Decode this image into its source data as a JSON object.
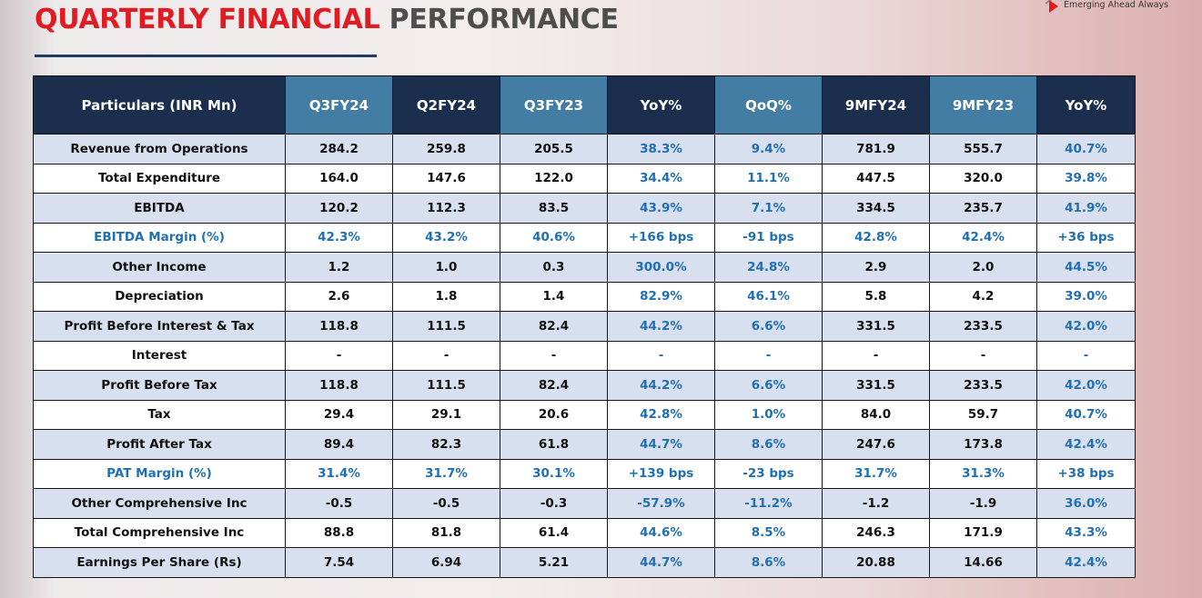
{
  "header": {
    "title_red": "QUARTERLY FINANCIAL",
    "title_gray": "PERFORMANCE",
    "tagline": "Emerging Ahead Always"
  },
  "colors": {
    "title_red": "#e11b22",
    "header_navy": "#1c2e4e",
    "header_highlight": "#447da4",
    "row_shade": "#d8e0f0",
    "value_blue": "#1f6fb2"
  },
  "table": {
    "columns": [
      "Particulars (INR Mn)",
      "Q3FY24",
      "Q2FY24",
      "Q3FY23",
      "YoY%",
      "QoQ%",
      "9MFY24",
      "9MFY23",
      "YoY%"
    ],
    "rows": [
      {
        "label": "Revenue from Operations",
        "cells": [
          "284.2",
          "259.8",
          "205.5",
          "38.3%",
          "9.4%",
          "781.9",
          "555.7",
          "40.7%"
        ]
      },
      {
        "label": "Total Expenditure",
        "cells": [
          "164.0",
          "147.6",
          "122.0",
          "34.4%",
          "11.1%",
          "447.5",
          "320.0",
          "39.8%"
        ]
      },
      {
        "label": "EBITDA",
        "cells": [
          "120.2",
          "112.3",
          "83.5",
          "43.9%",
          "7.1%",
          "334.5",
          "235.7",
          "41.9%"
        ]
      },
      {
        "label": "EBITDA Margin (%)",
        "cells": [
          "42.3%",
          "43.2%",
          "40.6%",
          "+166 bps",
          "-91 bps",
          "42.8%",
          "42.4%",
          "+36 bps"
        ]
      },
      {
        "label": "Other Income",
        "cells": [
          "1.2",
          "1.0",
          "0.3",
          "300.0%",
          "24.8%",
          "2.9",
          "2.0",
          "44.5%"
        ]
      },
      {
        "label": "Depreciation",
        "cells": [
          "2.6",
          "1.8",
          "1.4",
          "82.9%",
          "46.1%",
          "5.8",
          "4.2",
          "39.0%"
        ]
      },
      {
        "label": "Profit Before Interest & Tax",
        "cells": [
          "118.8",
          "111.5",
          "82.4",
          "44.2%",
          "6.6%",
          "331.5",
          "233.5",
          "42.0%"
        ]
      },
      {
        "label": "Interest",
        "cells": [
          "-",
          "-",
          "-",
          "-",
          "-",
          "-",
          "-",
          "-"
        ]
      },
      {
        "label": "Profit Before Tax",
        "cells": [
          "118.8",
          "111.5",
          "82.4",
          "44.2%",
          "6.6%",
          "331.5",
          "233.5",
          "42.0%"
        ]
      },
      {
        "label": "Tax",
        "cells": [
          "29.4",
          "29.1",
          "20.6",
          "42.8%",
          "1.0%",
          "84.0",
          "59.7",
          "40.7%"
        ]
      },
      {
        "label": "Profit After Tax",
        "cells": [
          "89.4",
          "82.3",
          "61.8",
          "44.7%",
          "8.6%",
          "247.6",
          "173.8",
          "42.4%"
        ]
      },
      {
        "label": "PAT Margin (%)",
        "cells": [
          "31.4%",
          "31.7%",
          "30.1%",
          "+139 bps",
          "-23 bps",
          "31.7%",
          "31.3%",
          "+38 bps"
        ]
      },
      {
        "label": "Other Comprehensive Inc",
        "cells": [
          "-0.5",
          "-0.5",
          "-0.3",
          "-57.9%",
          "-11.2%",
          "-1.2",
          "-1.9",
          "36.0%"
        ]
      },
      {
        "label": "Total Comprehensive Inc",
        "cells": [
          "88.8",
          "81.8",
          "61.4",
          "44.6%",
          "8.5%",
          "246.3",
          "171.9",
          "43.3%"
        ]
      },
      {
        "label": "Earnings Per Share (Rs)",
        "cells": [
          "7.54",
          "6.94",
          "5.21",
          "44.7%",
          "8.6%",
          "20.88",
          "14.66",
          "42.4%"
        ]
      }
    ]
  }
}
